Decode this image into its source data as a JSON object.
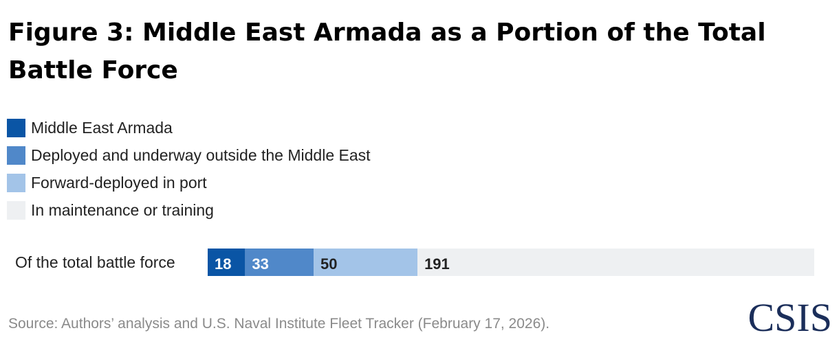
{
  "title": "Figure 3: Middle East Armada as a Portion of the Total Battle Force",
  "source": "Source: Authors’ analysis and U.S. Naval Institute Fleet Tracker (February 17, 2026).",
  "logo": "CSIS",
  "chart_data": {
    "type": "bar",
    "orientation": "horizontal",
    "stacked": true,
    "categories": [
      "Of the total battle force"
    ],
    "series": [
      {
        "name": "Middle East Armada",
        "values": [
          18
        ],
        "color": "#0a55a5",
        "label_color": "#ffffff"
      },
      {
        "name": "Deployed and underway outside the Middle East",
        "values": [
          33
        ],
        "color": "#5088c9",
        "label_color": "#ffffff"
      },
      {
        "name": "Forward-deployed in port",
        "values": [
          50
        ],
        "color": "#a3c4e8",
        "label_color": "#222222"
      },
      {
        "name": "In maintenance or training",
        "values": [
          191
        ],
        "color": "#eef0f2",
        "label_color": "#222222"
      }
    ],
    "title": "",
    "xlabel": "",
    "ylabel": "",
    "grid": false,
    "legend": "top-left"
  }
}
